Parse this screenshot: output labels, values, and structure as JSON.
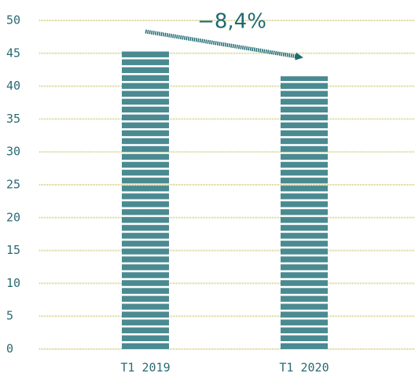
{
  "chart_data": {
    "type": "bar",
    "annotation": "−8,4%",
    "categories": [
      "T1 2019",
      "T1 2020"
    ],
    "values": [
      45.3,
      41.5
    ],
    "color": "#4a8a91",
    "ylim": [
      0,
      50
    ],
    "yticks": [
      0,
      5,
      10,
      15,
      20,
      25,
      30,
      35,
      40,
      45,
      50
    ],
    "grid": true
  }
}
